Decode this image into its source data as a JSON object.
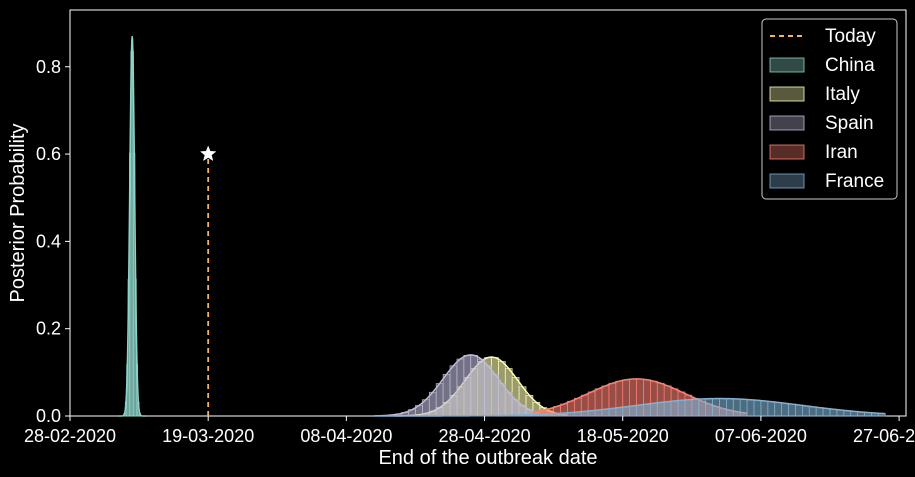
{
  "chart_data": {
    "type": "area",
    "xlabel": "End of the outbreak date",
    "ylabel": "Posterior Probability",
    "x_ticks": [
      "28-02-2020",
      "19-03-2020",
      "08-04-2020",
      "28-04-2020",
      "18-05-2020",
      "07-06-2020",
      "27-06-2020"
    ],
    "y_ticks": [
      "0.0",
      "0.2",
      "0.4",
      "0.6",
      "0.8"
    ],
    "xlim": [
      "28-02-2020",
      "28-06-2020"
    ],
    "ylim": [
      0,
      0.93
    ],
    "grid": false,
    "legend_position": "top-right",
    "today": {
      "label": "Today",
      "date": "19-03-2020",
      "marker_value": 0.6,
      "color": "#f5b36a"
    },
    "series": [
      {
        "name": "China",
        "color": "#8dd3c7",
        "peak_date": "08-03-2020",
        "peak": 0.87,
        "sd_days": 0.35,
        "start": "06-03-2020",
        "end": "10-03-2020"
      },
      {
        "name": "Italy",
        "color": "#ffffb3",
        "peak_date": "29-04-2020",
        "peak": 0.135,
        "sd_days": 3.8,
        "start": "15-04-2020",
        "end": "10-05-2020"
      },
      {
        "name": "Spain",
        "color": "#bebada",
        "peak_date": "26-04-2020",
        "peak": 0.14,
        "sd_days": 4.0,
        "start": "12-04-2020",
        "end": "06-05-2020"
      },
      {
        "name": "Iran",
        "color": "#fb8072",
        "peak_date": "20-05-2020",
        "peak": 0.085,
        "sd_days": 7.0,
        "start": "05-05-2020",
        "end": "05-06-2020"
      },
      {
        "name": "France",
        "color": "#80b1d3",
        "peak_date": "01-06-2020",
        "peak": 0.04,
        "sd_days": 12.0,
        "start": "12-04-2020",
        "end": "25-06-2020"
      }
    ]
  }
}
